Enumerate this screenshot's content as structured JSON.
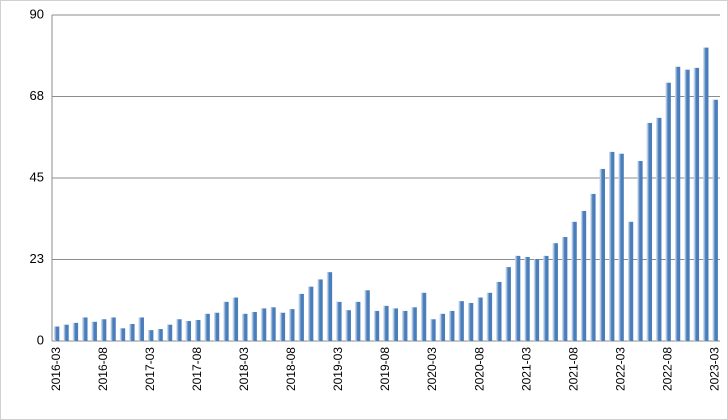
{
  "chart_data": {
    "type": "bar",
    "categories": [
      "2016-03",
      null,
      null,
      null,
      null,
      "2016-08",
      null,
      null,
      null,
      null,
      "2017-03",
      null,
      null,
      null,
      null,
      "2017-08",
      null,
      null,
      null,
      null,
      "2018-03",
      null,
      null,
      null,
      null,
      "2018-08",
      null,
      null,
      null,
      null,
      "2019-03",
      null,
      null,
      null,
      null,
      "2019-08",
      null,
      null,
      null,
      null,
      "2020-03",
      null,
      null,
      null,
      null,
      "2020-08",
      null,
      null,
      null,
      null,
      "2021-03",
      null,
      null,
      null,
      null,
      "2021-08",
      null,
      null,
      null,
      null,
      "2022-03",
      null,
      null,
      null,
      null,
      "2022-08",
      null,
      null,
      null,
      null,
      "2023-03"
    ],
    "values": [
      4,
      4.5,
      5,
      6.5,
      5.3,
      6,
      6.5,
      3.5,
      4.7,
      6.5,
      3,
      3.3,
      4.5,
      6,
      5.5,
      5.8,
      7.5,
      7.8,
      10.8,
      12,
      7.5,
      8,
      9,
      9.3,
      7.8,
      8.8,
      13,
      15,
      17,
      19,
      10.8,
      8.5,
      10.8,
      14,
      8.3,
      9.7,
      9,
      8.3,
      9.3,
      13.3,
      6,
      7.5,
      8.3,
      11,
      10.5,
      12,
      13.3,
      16.3,
      20.4,
      23.5,
      23.2,
      22.6,
      23.5,
      27,
      28.7,
      32.9,
      35.9,
      40.6,
      47.5,
      52.2,
      51.7,
      32.9,
      49.7,
      60.2,
      61.6,
      71.3,
      75.7,
      74.9,
      75.4,
      81,
      66.6
    ],
    "color": "#4a7ebb",
    "ylim": [
      0,
      90
    ],
    "yticks": [
      0,
      {
        "value": 22.5,
        "label": "23"
      },
      45,
      {
        "value": 67.5,
        "label": "68"
      },
      90
    ],
    "grid": true
  }
}
